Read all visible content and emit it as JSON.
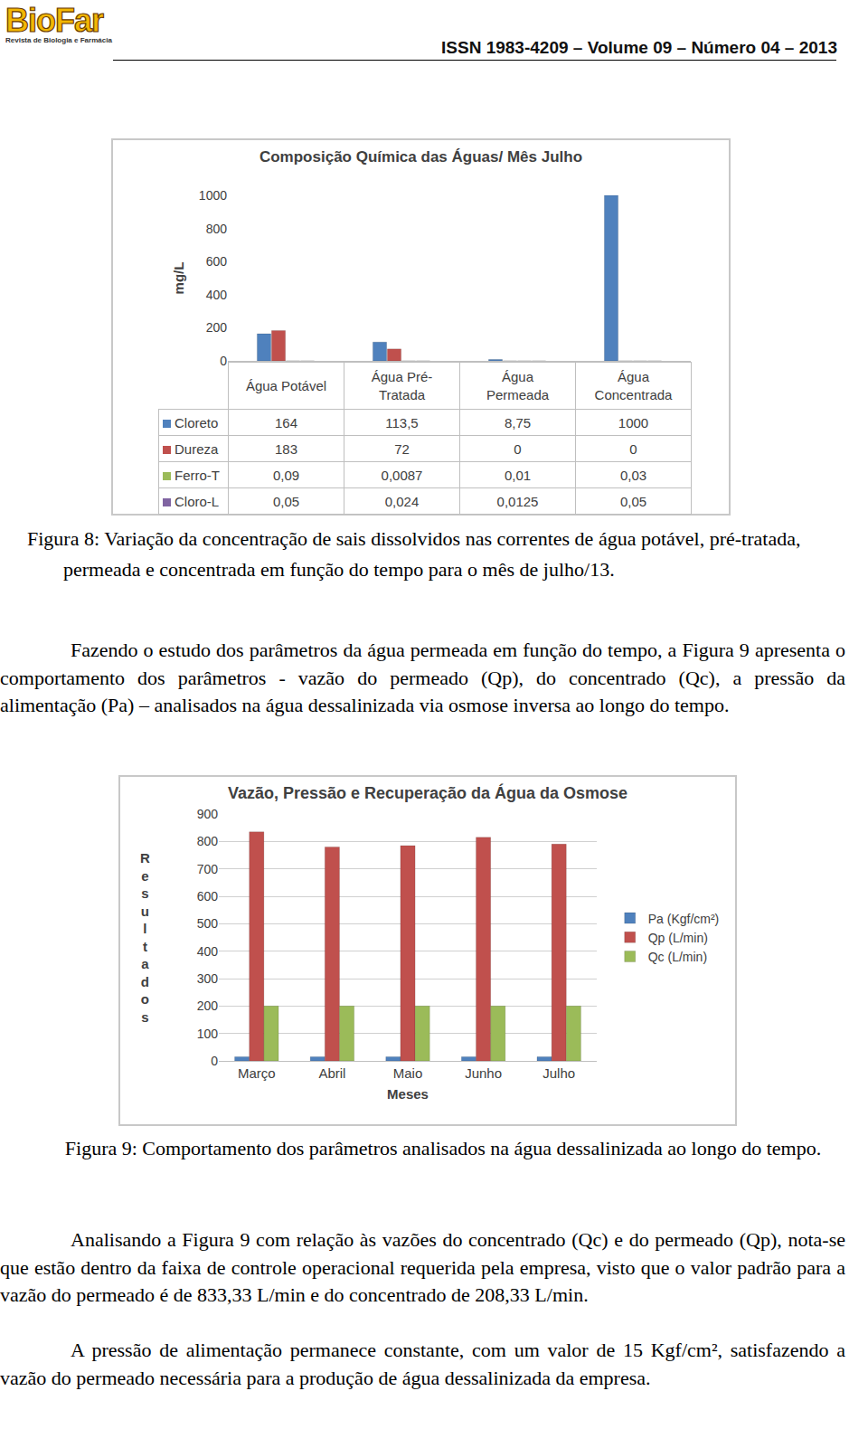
{
  "header": {
    "logo": "BioFar",
    "logo_subtitle": "Revista de Biologia e Farmácia",
    "issn": "ISSN 1983-4209 – Volume 09 – Número 04 – 2013"
  },
  "chart_data": [
    {
      "type": "bar",
      "title": "Composição Química das Águas/ Mês Julho",
      "y_label": "mg/L",
      "categories": [
        "Água Potável",
        "Água Pré-Tratada",
        "Água Permeada",
        "Água Concentrada"
      ],
      "series": [
        {
          "name": "Cloreto",
          "color": "#4f81bd",
          "values": [
            164,
            113.5,
            8.75,
            1000
          ],
          "value_labels": [
            "164",
            "113,5",
            "8,75",
            "1000"
          ]
        },
        {
          "name": "Dureza",
          "color": "#c0504d",
          "values": [
            183,
            72,
            0,
            0
          ],
          "value_labels": [
            "183",
            "72",
            "0",
            "0"
          ]
        },
        {
          "name": "Ferro-T",
          "color": "#9bbb59",
          "values": [
            0.09,
            0.0087,
            0.01,
            0.03
          ],
          "value_labels": [
            "0,09",
            "0,0087",
            "0,01",
            "0,03"
          ]
        },
        {
          "name": "Cloro-L",
          "color": "#8064a2",
          "values": [
            0.05,
            0.024,
            0.0125,
            0.05
          ],
          "value_labels": [
            "0,05",
            "0,024",
            "0,0125",
            "0,05"
          ]
        }
      ],
      "ylim": [
        0,
        1000
      ],
      "yticks": [
        0,
        200,
        400,
        600,
        800,
        1000
      ],
      "grid": false,
      "data_labels": true
    },
    {
      "type": "bar",
      "title": "Vazão, Pressão e Recuperação da Água da Osmose",
      "x_label": "Meses",
      "y_label": "Resultados",
      "categories": [
        "Março",
        "Abril",
        "Maio",
        "Junho",
        "Julho"
      ],
      "series": [
        {
          "name": "Pa (Kgf/cm²)",
          "color": "#4f81bd",
          "values": [
            15,
            15,
            15,
            15,
            15
          ]
        },
        {
          "name": "Qp (L/min)",
          "color": "#c0504d",
          "values": [
            835,
            780,
            785,
            815,
            790
          ]
        },
        {
          "name": "Qc (L/min)",
          "color": "#9bbb59",
          "values": [
            200,
            200,
            200,
            200,
            200
          ]
        }
      ],
      "ylim": [
        0,
        900
      ],
      "yticks": [
        0,
        100,
        200,
        300,
        400,
        500,
        600,
        700,
        800,
        900
      ],
      "grid": true,
      "legend": "right"
    }
  ],
  "captions": [
    "Figura 8: Variação da concentração de sais dissolvidos nas correntes de água potável, pré-tratada, permeada e concentrada em função do tempo para o mês de julho/13.",
    "Figura 9: Comportamento dos parâmetros analisados na água dessalinizada ao longo do tempo."
  ],
  "paragraphs": [
    "Fazendo o estudo dos parâmetros da água permeada em função do tempo, a Figura 9 apresenta o comportamento dos parâmetros - vazão do permeado (Qp), do concentrado (Qc), a pressão da alimentação (Pa) – analisados na água dessalinizada via osmose inversa ao longo do tempo.",
    "Analisando a Figura 9 com relação às vazões do concentrado (Qc) e do permeado (Qp), nota-se que estão dentro da faixa de controle operacional requerida pela empresa, visto que o valor padrão para a vazão do permeado é de 833,33 L/min e do concentrado de 208,33 L/min.",
    "A pressão de alimentação permanece constante, com um valor de 15 Kgf/cm², satisfazendo a vazão do permeado necessária para a produção de água dessalinizada da empresa."
  ]
}
